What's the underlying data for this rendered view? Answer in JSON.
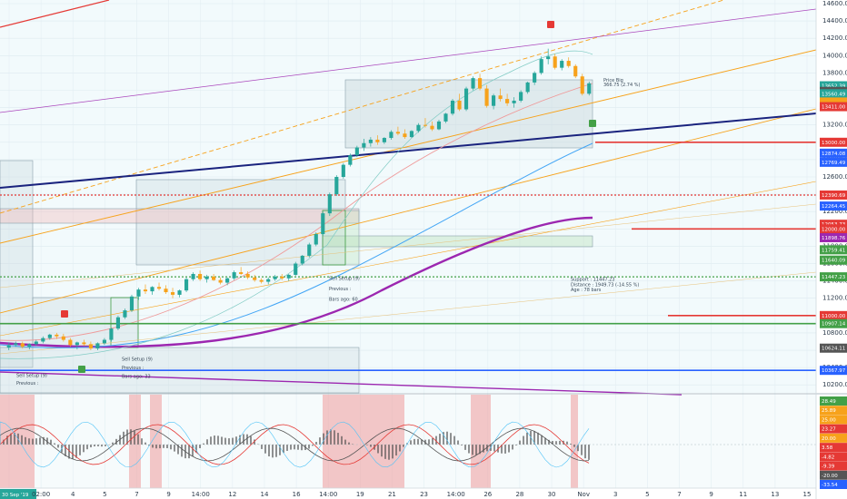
{
  "chart_data": [
    {
      "type": "candlestick",
      "price_axis": {
        "range": [
          10150,
          14600
        ],
        "tick_labels": [
          "14600.00",
          "14400.00",
          "14200.00",
          "14000.00",
          "13800.00",
          "13600.00",
          "13400.00",
          "13200.00",
          "13000.00",
          "12800.00",
          "12600.00",
          "12400.00",
          "12200.00",
          "12000.00",
          "11800.00",
          "11600.00",
          "11400.00",
          "11200.00",
          "11000.00",
          "10800.00",
          "10600.00",
          "10400.00",
          "10200.00"
        ]
      },
      "time_axis": {
        "labels": [
          "30 Sep '19",
          "02:00",
          "4",
          "5",
          "7",
          "9",
          "14:00",
          "12",
          "14",
          "16",
          "14:00",
          "19",
          "21",
          "23",
          "14:00",
          "26",
          "28",
          "30",
          "Nov",
          "3",
          "5",
          "7",
          "9",
          "11",
          "13",
          "15"
        ]
      },
      "price_badges": [
        {
          "text": "13652.39",
          "price": 13652,
          "color": "#26a69a"
        },
        {
          "text": "13586.70",
          "price": 13587,
          "color": "#555555"
        },
        {
          "text": "13560.49",
          "price": 13560,
          "color": "#26a69a"
        },
        {
          "text": "13464.96",
          "price": 13465,
          "color": "#f7a21b"
        },
        {
          "text": "32:08",
          "price": 13440,
          "color": "#f7a21b"
        },
        {
          "text": "13411.00",
          "price": 13411,
          "color": "#e53935"
        },
        {
          "text": "13000.00",
          "price": 13000,
          "color": "#e53935"
        },
        {
          "text": "12874.08",
          "price": 12874,
          "color": "#2962ff"
        },
        {
          "text": "12769.49",
          "price": 12769,
          "color": "#2962ff"
        },
        {
          "text": "12390.69",
          "price": 12391,
          "color": "#e53935"
        },
        {
          "text": "12264.45",
          "price": 12264,
          "color": "#2962ff"
        },
        {
          "text": "12053.73",
          "price": 12054,
          "color": "#e53935"
        },
        {
          "text": "12000.00",
          "price": 12000,
          "color": "#e53935"
        },
        {
          "text": "11901.00",
          "price": 11901,
          "color": "#e53935"
        },
        {
          "text": "11898.76",
          "price": 11899,
          "color": "#9c27b0"
        },
        {
          "text": "11759.41",
          "price": 11759,
          "color": "#43a047"
        },
        {
          "text": "11640.09",
          "price": 11640,
          "color": "#43a047"
        },
        {
          "text": "11447.23",
          "price": 11447,
          "color": "#43a047"
        },
        {
          "text": "11000.00",
          "price": 11000,
          "color": "#e53935"
        },
        {
          "text": "10907.14",
          "price": 10907,
          "color": "#43a047"
        },
        {
          "text": "10624.11",
          "price": 10624,
          "color": "#555555"
        },
        {
          "text": "10367.97",
          "price": 10368,
          "color": "#2962ff"
        }
      ],
      "annotations": [
        {
          "text": "Price Big",
          "price": 13700
        },
        {
          "text": "366.75 (2.74 %)",
          "price": 13645
        },
        {
          "text": "Support : 11447.23",
          "price": 11400
        },
        {
          "text": "Distance : 1949.73 (-14.55 %)",
          "price": 11340
        },
        {
          "text": "Age : 78 bars",
          "price": 11280
        },
        {
          "text": "Sell Setup (9)",
          "price": 11410
        },
        {
          "text": "Previous :",
          "price": 11290
        },
        {
          "text": "Bars ago: 60",
          "price": 11170
        },
        {
          "text": "Sell Setup (9)",
          "price": 10480
        },
        {
          "text": "Previous :",
          "price": 10380
        },
        {
          "text": "Bars ago: 33",
          "price": 10280
        },
        {
          "text": "Sell Setup (9)",
          "price": 10290
        },
        {
          "text": "Previous :",
          "price": 10200
        }
      ],
      "horizontal_levels": [
        {
          "price": 13000,
          "color": "#e53935",
          "style": "solid"
        },
        {
          "price": 12000,
          "color": "#e53935",
          "style": "solid"
        },
        {
          "price": 11000,
          "color": "#e53935",
          "style": "solid"
        },
        {
          "price": 10907,
          "color": "#43a047",
          "style": "solid"
        },
        {
          "price": 10368,
          "color": "#2962ff",
          "style": "solid"
        },
        {
          "price": 11447,
          "color": "#43a047",
          "style": "dotted"
        },
        {
          "price": 12391,
          "color": "#e53935",
          "style": "dotted"
        }
      ],
      "candles": [
        [
          10630,
          10690,
          10600,
          10660
        ],
        [
          10660,
          10700,
          10640,
          10680
        ],
        [
          10680,
          10700,
          10620,
          10640
        ],
        [
          10640,
          10680,
          10610,
          10670
        ],
        [
          10670,
          10720,
          10650,
          10700
        ],
        [
          10700,
          10760,
          10680,
          10740
        ],
        [
          10740,
          10790,
          10720,
          10780
        ],
        [
          10780,
          10800,
          10730,
          10760
        ],
        [
          10760,
          10790,
          10700,
          10720
        ],
        [
          10720,
          10740,
          10640,
          10660
        ],
        [
          10660,
          10700,
          10610,
          10690
        ],
        [
          10690,
          10720,
          10650,
          10670
        ],
        [
          10670,
          10700,
          10600,
          10620
        ],
        [
          10620,
          10690,
          10600,
          10680
        ],
        [
          10680,
          10740,
          10660,
          10720
        ],
        [
          10720,
          10860,
          10700,
          10850
        ],
        [
          10850,
          11000,
          10830,
          10980
        ],
        [
          10980,
          11080,
          10960,
          11060
        ],
        [
          11060,
          11240,
          11040,
          11220
        ],
        [
          11220,
          11320,
          11180,
          11300
        ],
        [
          11300,
          11360,
          11250,
          11280
        ],
        [
          11280,
          11340,
          11240,
          11330
        ],
        [
          11330,
          11380,
          11290,
          11310
        ],
        [
          11310,
          11350,
          11250,
          11270
        ],
        [
          11270,
          11320,
          11200,
          11240
        ],
        [
          11240,
          11300,
          11210,
          11290
        ],
        [
          11290,
          11440,
          11270,
          11420
        ],
        [
          11420,
          11500,
          11400,
          11480
        ],
        [
          11480,
          11520,
          11400,
          11420
        ],
        [
          11420,
          11470,
          11380,
          11450
        ],
        [
          11450,
          11480,
          11400,
          11410
        ],
        [
          11410,
          11440,
          11360,
          11380
        ],
        [
          11380,
          11440,
          11350,
          11430
        ],
        [
          11430,
          11520,
          11410,
          11500
        ],
        [
          11500,
          11560,
          11470,
          11480
        ],
        [
          11480,
          11510,
          11420,
          11440
        ],
        [
          11440,
          11470,
          11390,
          11410
        ],
        [
          11410,
          11430,
          11370,
          11390
        ],
        [
          11390,
          11440,
          11360,
          11420
        ],
        [
          11420,
          11470,
          11400,
          11450
        ],
        [
          11450,
          11480,
          11410,
          11430
        ],
        [
          11430,
          11480,
          11400,
          11470
        ],
        [
          11470,
          11620,
          11460,
          11600
        ],
        [
          11600,
          11700,
          11580,
          11690
        ],
        [
          11690,
          11840,
          11670,
          11820
        ],
        [
          11820,
          11960,
          11800,
          11940
        ],
        [
          11940,
          12200,
          11920,
          12180
        ],
        [
          12180,
          12420,
          12150,
          12400
        ],
        [
          12400,
          12620,
          12380,
          12600
        ],
        [
          12600,
          12760,
          12580,
          12740
        ],
        [
          12740,
          12870,
          12720,
          12850
        ],
        [
          12850,
          12960,
          12830,
          12940
        ],
        [
          12940,
          13040,
          12900,
          12990
        ],
        [
          12990,
          13060,
          12950,
          13030
        ],
        [
          13030,
          13080,
          12970,
          13000
        ],
        [
          13000,
          13060,
          12980,
          13050
        ],
        [
          13050,
          13140,
          13030,
          13120
        ],
        [
          13120,
          13180,
          13080,
          13100
        ],
        [
          13100,
          13150,
          13040,
          13060
        ],
        [
          13060,
          13140,
          13050,
          13130
        ],
        [
          13130,
          13220,
          13110,
          13200
        ],
        [
          13200,
          13280,
          13170,
          13190
        ],
        [
          13190,
          13240,
          13130,
          13150
        ],
        [
          13150,
          13260,
          13140,
          13240
        ],
        [
          13240,
          13340,
          13220,
          13330
        ],
        [
          13330,
          13500,
          13310,
          13480
        ],
        [
          13480,
          13560,
          13360,
          13380
        ],
        [
          13380,
          13640,
          13360,
          13620
        ],
        [
          13620,
          13760,
          13600,
          13740
        ],
        [
          13740,
          13790,
          13600,
          13620
        ],
        [
          13620,
          13660,
          13400,
          13420
        ],
        [
          13420,
          13560,
          13380,
          13540
        ],
        [
          13540,
          13620,
          13470,
          13500
        ],
        [
          13500,
          13560,
          13420,
          13450
        ],
        [
          13450,
          13520,
          13400,
          13480
        ],
        [
          13480,
          13600,
          13460,
          13580
        ],
        [
          13580,
          13700,
          13560,
          13690
        ],
        [
          13690,
          13820,
          13660,
          13800
        ],
        [
          13800,
          13990,
          13780,
          13960
        ],
        [
          13960,
          14080,
          13900,
          13990
        ],
        [
          13990,
          14020,
          13840,
          13860
        ],
        [
          13860,
          13960,
          13830,
          13940
        ],
        [
          13940,
          13980,
          13860,
          13880
        ],
        [
          13880,
          13900,
          13740,
          13760
        ],
        [
          13760,
          13790,
          13540,
          13560
        ],
        [
          13560,
          13700,
          13540,
          13680
        ]
      ]
    },
    {
      "type": "line",
      "title": "",
      "y_tick_labels": [
        "28.49",
        "25.89",
        "25.00",
        "23.27",
        "20.00",
        "3.58",
        "-4.82",
        "-9.39",
        "-20.00",
        "-33.54"
      ]
    }
  ],
  "icons": {
    "signal_sell": "sell-flag-icon",
    "signal_buy": "buy-flag-icon",
    "goto": "go-to-realtime-icon"
  }
}
